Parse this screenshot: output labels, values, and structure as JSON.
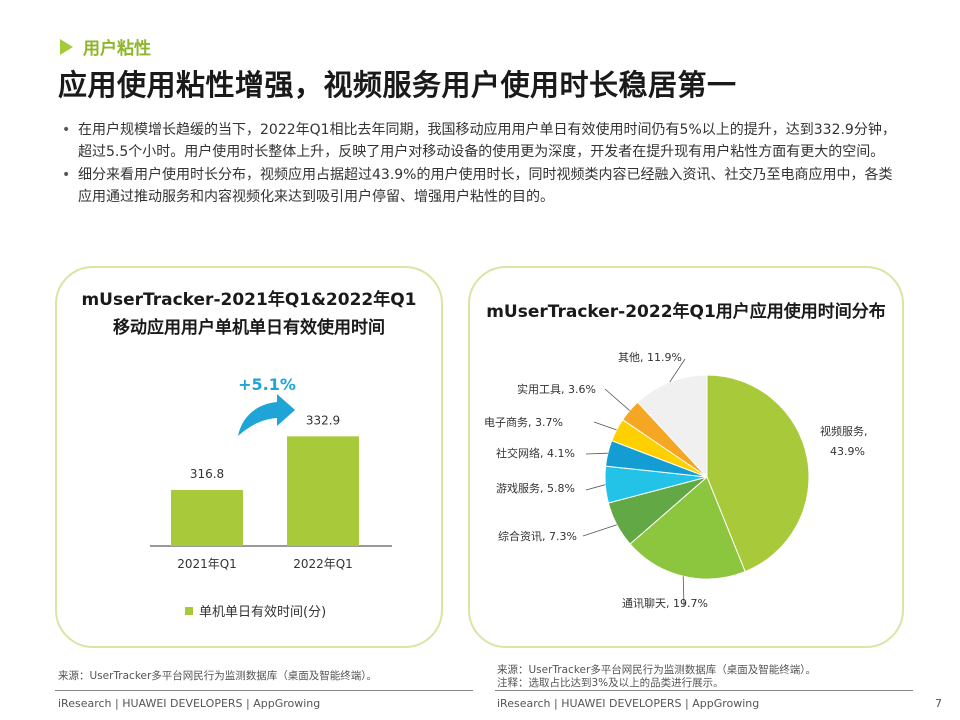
{
  "header": {
    "section_label": "用户粘性",
    "title": "应用使用粘性增强，视频服务用户使用时长稳居第一"
  },
  "bullets": [
    "在用户规模增长趋缓的当下，2022年Q1相比去年同期，我国移动应用用户单日有效使用时间仍有5%以上的提升，达到332.9分钟，超过5.5个小时。用户使用时长整体上升，反映了用户对移动设备的使用更为深度，开发者在提升现有用户粘性方面有更大的空间。",
    "细分来看用户使用时长分布，视频应用占据超过43.9%的用户使用时长，同时视频类内容已经融入资讯、社交乃至电商应用中，各类应用通过推动服务和内容视频化来达到吸引用户停留、增强用户粘性的目的。"
  ],
  "left_panel": {
    "title_line1": "mUserTracker-2021年Q1&2022年Q1",
    "title_line2": "移动应用用户单机单日有效使用时间",
    "growth_label": "+5.1%",
    "legend_label": "单机单日有效时间(分)",
    "source": "来源：UserTracker多平台网民行为监测数据库（桌面及智能终端）。"
  },
  "right_panel": {
    "title": "mUserTracker-2022年Q1用户应用使用时间分布",
    "source_line1": "来源：UserTracker多平台网民行为监测数据库（桌面及智能终端）。",
    "source_line2": "注释：选取占比达到3%及以上的品类进行展示。"
  },
  "footer": {
    "left": "iResearch | HUAWEI DEVELOPERS | AppGrowing",
    "right": "iResearch | HUAWEI DEVELOPERS | AppGrowing",
    "page_number": "7"
  },
  "chart_data": [
    {
      "type": "bar",
      "categories": [
        "2021年Q1",
        "2022年Q1"
      ],
      "values": [
        316.8,
        332.9
      ],
      "value_labels": [
        "316.8",
        "332.9"
      ],
      "series": [
        {
          "name": "单机单日有效时间(分)",
          "values": [
            316.8,
            332.9
          ]
        }
      ],
      "ylim": [
        300,
        345
      ],
      "color": "#a8c93a",
      "growth_annotation": "+5.1%",
      "growth_color": "#1fa4d8"
    },
    {
      "type": "pie",
      "title": "mUserTracker-2022年Q1用户应用使用时间分布",
      "slices": [
        {
          "label": "视频服务",
          "value": 43.9,
          "label_text_1": "视频服务,",
          "label_text_2": "43.9%",
          "color": "#a8c93a"
        },
        {
          "label": "通讯聊天",
          "value": 19.7,
          "label_text_1": "通讯聊天, 19.7%",
          "color": "#8cc63f"
        },
        {
          "label": "综合资讯",
          "value": 7.3,
          "label_text_1": "综合资讯, 7.3%",
          "color": "#62a844"
        },
        {
          "label": "游戏服务",
          "value": 5.8,
          "label_text_1": "游戏服务, 5.8%",
          "color": "#22c3e6"
        },
        {
          "label": "社交网络",
          "value": 4.1,
          "label_text_1": "社交网络, 4.1%",
          "color": "#139dd3"
        },
        {
          "label": "电子商务",
          "value": 3.7,
          "label_text_1": "电子商务, 3.7%",
          "color": "#ffd000"
        },
        {
          "label": "实用工具",
          "value": 3.6,
          "label_text_1": "实用工具, 3.6%",
          "color": "#f5a623"
        },
        {
          "label": "其他",
          "value": 11.9,
          "label_text_1": "其他, 11.9%",
          "color": "#f0f0f0"
        }
      ]
    }
  ]
}
